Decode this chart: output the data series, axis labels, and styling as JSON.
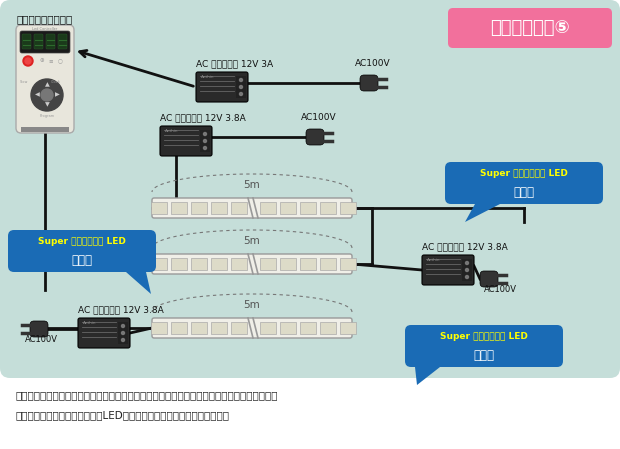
{
  "title": "配線パターン⑤",
  "title_bg": "#F2709C",
  "bg_color": "#C5DED9",
  "white_bg": "#FFFFFF",
  "footer_text1": "この配線図でも点灯は可能。しかし電源数量が多く、電気性質上負担のかかる部分ができてし",
  "footer_text2": "まうので、それが原因でテープLEDや電源の破損に繋がる可能性がある。",
  "controller_label": "専用コントローラー",
  "adapter_12v_3a": "AC アダプター 12V 3A",
  "adapter_12v_38a": "AC アダプター 12V 3.8A",
  "ac100v": "AC100V",
  "label_5m": "5m",
  "led_bubble_color": "#1A6BB5",
  "led_text_yellow": "#FFFF00",
  "led_text_white": "#FFFFFF",
  "wire_color": "#111111",
  "adapter_color": "#2a2a2a",
  "plug_color": "#333333",
  "led_strip_bg": "#F0EFE8",
  "led_strip_ec": "#999999",
  "led_cell_bg": "#DDDBC8",
  "led_cell_ec": "#AAAAAA",
  "controller_body": "#E8E6DC",
  "controller_screen": "#1a1a1a"
}
